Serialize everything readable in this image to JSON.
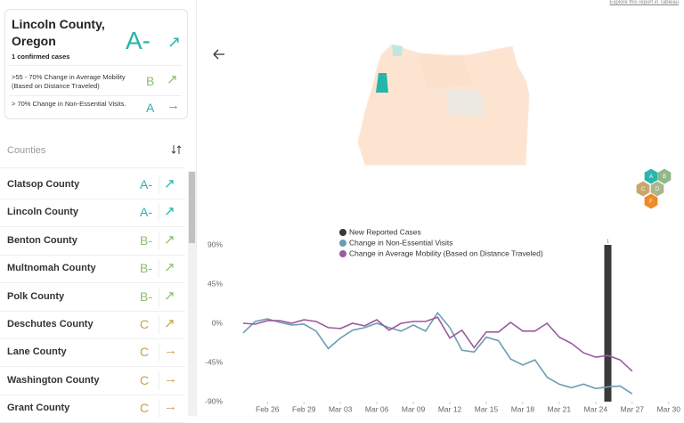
{
  "link": "Explore this report in Tableau",
  "summary": {
    "county": "Lincoln County, Oregon",
    "cases": "1 confirmed cases",
    "grade": "A-",
    "trend": "↗",
    "metrics": [
      {
        "label": ">55 - 70% Change in Average Mobility (Based on Distance Traveled)",
        "grade": "B",
        "trend": "↗"
      },
      {
        "label": "> 70% Change in Non-Essential Visits.",
        "grade": "A",
        "trend": "→"
      }
    ]
  },
  "counties": {
    "header": "Counties",
    "rows": [
      {
        "name": "Clatsop County",
        "grade": "A-",
        "trend": "↗"
      },
      {
        "name": "Lincoln County",
        "grade": "A-",
        "trend": "↗"
      },
      {
        "name": "Benton County",
        "grade": "B-",
        "trend": "↗"
      },
      {
        "name": "Multnomah County",
        "grade": "B-",
        "trend": "↗"
      },
      {
        "name": "Polk County",
        "grade": "B-",
        "trend": "↗"
      },
      {
        "name": "Deschutes County",
        "grade": "C",
        "trend": "↗"
      },
      {
        "name": "Lane County",
        "grade": "C",
        "trend": "→"
      },
      {
        "name": "Washington County",
        "grade": "C",
        "trend": "→"
      },
      {
        "name": "Grant County",
        "grade": "C",
        "trend": "→"
      }
    ]
  },
  "map_legend": [
    "A",
    "B",
    "C",
    "D",
    "F"
  ],
  "chart_data": {
    "type": "line",
    "categories": [
      null,
      null,
      "Feb 26",
      null,
      null,
      "Feb 29",
      null,
      null,
      "Mar 03",
      null,
      null,
      "Mar 06",
      null,
      null,
      "Mar 09",
      null,
      null,
      "Mar 12",
      null,
      null,
      "Mar 15",
      null,
      null,
      "Mar 18",
      null,
      null,
      "Mar 21",
      null,
      null,
      "Mar 24",
      null,
      null,
      "Mar 27",
      null,
      null,
      "Mar 30"
    ],
    "series": [
      {
        "name": "New Reported Cases",
        "color": "#3a3a3a",
        "kind": "bar",
        "axis": "y2",
        "values": [
          null,
          null,
          null,
          null,
          null,
          null,
          null,
          null,
          null,
          null,
          null,
          null,
          null,
          null,
          null,
          null,
          null,
          null,
          null,
          null,
          null,
          null,
          null,
          null,
          null,
          null,
          null,
          null,
          null,
          null,
          1,
          null,
          null,
          null,
          null,
          null
        ]
      },
      {
        "name": "Change in Non-Essential Visits",
        "color": "#6b9db3",
        "values": [
          -11,
          2,
          5,
          1,
          -2,
          -1,
          -9,
          -29,
          -17,
          -8,
          -5,
          0,
          -5,
          -9,
          -2,
          -9,
          12,
          -5,
          -31,
          -33,
          -16,
          -20,
          -41,
          -48,
          -42,
          -62,
          -70,
          -74,
          -70,
          -75,
          -73,
          -72,
          -81,
          null,
          null,
          null
        ]
      },
      {
        "name": "Change in Average Mobility (Based on Distance Traveled)",
        "color": "#9a5a9e",
        "values": [
          0,
          -1,
          3,
          3,
          0,
          4,
          2,
          -5,
          -6,
          0,
          -3,
          4,
          -8,
          0,
          2,
          2,
          7,
          -17,
          -8,
          -28,
          -10,
          -10,
          1,
          -9,
          -9,
          0,
          -16,
          -23,
          -34,
          -39,
          -37,
          -42,
          -55,
          null,
          null,
          null
        ]
      }
    ],
    "ylim": [
      -90,
      90
    ],
    "yticks": [
      {
        "value": 90,
        "label": "90%"
      },
      {
        "value": 45,
        "label": "45%"
      },
      {
        "value": 0,
        "label": "0%"
      },
      {
        "value": -45,
        "label": "-45%"
      },
      {
        "value": -90,
        "label": "-90%"
      }
    ],
    "y2lim": [
      0,
      1
    ],
    "grid": false
  }
}
